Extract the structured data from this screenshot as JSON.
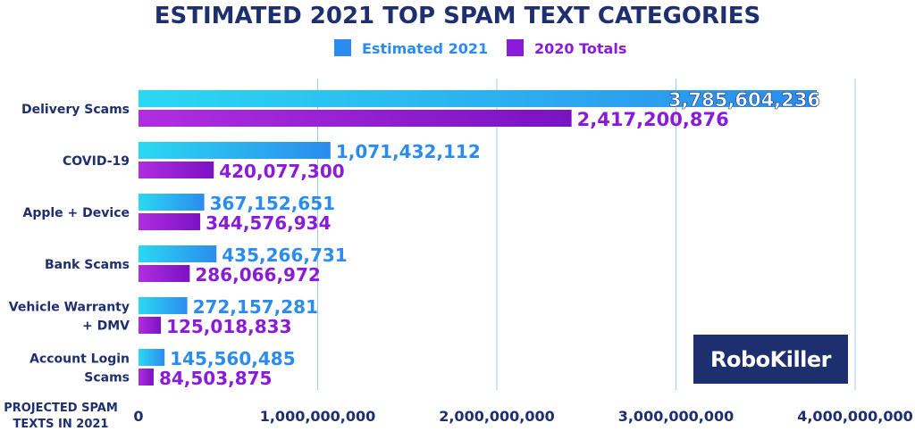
{
  "chart_data": {
    "type": "bar",
    "orientation": "horizontal",
    "title": "ESTIMATED 2021 TOP SPAM TEXT CATEGORIES",
    "xlabel": "PROJECTED SPAM TEXTS IN 2021",
    "xlabel_lines": [
      "PROJECTED SPAM",
      "TEXTS IN 2021"
    ],
    "xlim": [
      0,
      4000000000
    ],
    "ticks": [
      {
        "value": 0,
        "label": "0"
      },
      {
        "value": 1000000000,
        "label": "1,000,000,000"
      },
      {
        "value": 2000000000,
        "label": "2,000,000,000"
      },
      {
        "value": 3000000000,
        "label": "3,000,000,000"
      },
      {
        "value": 4000000000,
        "label": "4,000,000,000"
      }
    ],
    "grid": true,
    "legend_position": "top-center",
    "categories": [
      {
        "name": "Delivery Scams",
        "lines": [
          "Delivery Scams"
        ]
      },
      {
        "name": "COVID-19",
        "lines": [
          "COVID-19"
        ]
      },
      {
        "name": "Apple + Device",
        "lines": [
          "Apple + Device"
        ]
      },
      {
        "name": "Bank Scams",
        "lines": [
          "Bank Scams"
        ]
      },
      {
        "name": "Vehicle Warranty + DMV",
        "lines": [
          "Vehicle Warranty",
          "+ DMV"
        ]
      },
      {
        "name": "Account Login Scams",
        "lines": [
          "Account Login",
          "Scams"
        ]
      }
    ],
    "series": [
      {
        "name": "Estimated 2021",
        "color": "#2b8ced",
        "gradient": [
          "#2bd8f3",
          "#2b8ced"
        ],
        "values": [
          3785604236,
          1071432112,
          367152651,
          435266731,
          272157281,
          145560485
        ],
        "labels": [
          "3,785,604,236",
          "1,071,432,112",
          "367,152,651",
          "435,266,731",
          "272,157,281",
          "145,560,485"
        ]
      },
      {
        "name": "2020 Totals",
        "color": "#8a1bd6",
        "gradient": [
          "#b02ee0",
          "#7a12c4"
        ],
        "values": [
          2417200876,
          420077300,
          344576934,
          286066972,
          125018833,
          84503875
        ],
        "labels": [
          "2,417,200,876",
          "420,077,300",
          "344,576,934",
          "286,066,972",
          "125,018,833",
          "84,503,875"
        ]
      }
    ]
  },
  "logo": {
    "text": "RoboKiller",
    "background": "#1d2f6f"
  },
  "colors": {
    "title": "#1d2f6f",
    "grid": "#9ec8ef"
  }
}
